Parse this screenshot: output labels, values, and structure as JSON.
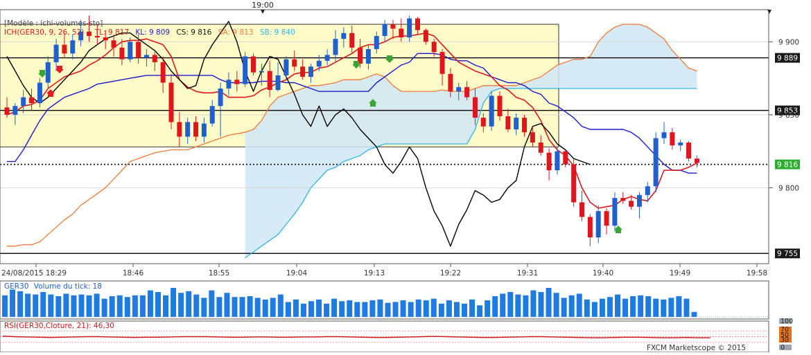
{
  "header": {
    "top_time": "19:00",
    "model": "[Modèle : ichi-volumes-sto]",
    "ich_label": "ICH(GER30, 9, 26, 52) -",
    "tl": "TL: 9 817",
    "kl": "KL: 9 809",
    "cs": "CS: 9 816",
    "sa": "SA: 9 813",
    "sb": "SB: 9 840"
  },
  "footer": {
    "brand": "FXCM Marketscope © 2015"
  },
  "colors": {
    "up": "#1f5fd0",
    "down": "#e0161c",
    "tenkan": "#e0161c",
    "kijun": "#1a1ad0",
    "chikou": "#000000",
    "senkou_a": "#f07b3a",
    "senkou_b": "#33b3e8",
    "cloud": "#cfe6f6",
    "zone": "#fffbc8",
    "volume": "#1f7be0",
    "rsi": "#cc1414"
  },
  "chart_data": [
    {
      "type": "candlestick",
      "title": "ICH(GER30, 9, 26, 52)",
      "x_tick_labels": [
        "24/08/2015 18:29",
        "18:46",
        "18:55",
        "19:04",
        "19:13",
        "19:22",
        "19:31",
        "19:40",
        "19:49",
        "19:58"
      ],
      "y_tick_labels": [
        "9 900",
        "9 850",
        "9 800"
      ],
      "ylim": [
        9748,
        9922
      ],
      "price_markers": [
        {
          "label": "9 889",
          "value": 9889,
          "style": "solid"
        },
        {
          "label": "9 853",
          "value": 9853,
          "style": "solid"
        },
        {
          "label": "9 816",
          "value": 9816,
          "style": "dashed",
          "color": "#2eae2e"
        },
        {
          "label": "9 755",
          "value": 9755,
          "style": "solid"
        }
      ],
      "zone": {
        "top": 9912,
        "bottom": 9828
      },
      "candles": [
        [
          9855,
          9862,
          9848,
          9850
        ],
        [
          9850,
          9858,
          9843,
          9856
        ],
        [
          9856,
          9867,
          9851,
          9862
        ],
        [
          9862,
          9868,
          9853,
          9858
        ],
        [
          9858,
          9875,
          9855,
          9872
        ],
        [
          9872,
          9890,
          9868,
          9886
        ],
        [
          9886,
          9902,
          9880,
          9898
        ],
        [
          9898,
          9906,
          9889,
          9892
        ],
        [
          9892,
          9905,
          9888,
          9901
        ],
        [
          9901,
          9915,
          9897,
          9907
        ],
        [
          9907,
          9918,
          9900,
          9904
        ],
        [
          9904,
          9912,
          9898,
          9903
        ],
        [
          9903,
          9908,
          9895,
          9901
        ],
        [
          9901,
          9905,
          9890,
          9896
        ],
        [
          9896,
          9902,
          9884,
          9888
        ],
        [
          9888,
          9903,
          9886,
          9900
        ],
        [
          9900,
          9905,
          9885,
          9889
        ],
        [
          9889,
          9895,
          9883,
          9891
        ],
        [
          9891,
          9893,
          9880,
          9886
        ],
        [
          9886,
          9890,
          9865,
          9872
        ],
        [
          9872,
          9878,
          9840,
          9845
        ],
        [
          9845,
          9852,
          9828,
          9835
        ],
        [
          9835,
          9848,
          9830,
          9845
        ],
        [
          9845,
          9849,
          9832,
          9835
        ],
        [
          9835,
          9848,
          9831,
          9844
        ],
        [
          9844,
          9860,
          9842,
          9856
        ],
        [
          9856,
          9872,
          9835,
          9868
        ],
        [
          9868,
          9879,
          9863,
          9874
        ],
        [
          9874,
          9880,
          9866,
          9871
        ],
        [
          9871,
          9893,
          9869,
          9890
        ],
        [
          9890,
          9892,
          9877,
          9879
        ],
        [
          9879,
          9885,
          9870,
          9880
        ],
        [
          9880,
          9887,
          9862,
          9867
        ],
        [
          9867,
          9886,
          9866,
          9877
        ],
        [
          9877,
          9890,
          9874,
          9888
        ],
        [
          9888,
          9894,
          9880,
          9883
        ],
        [
          9883,
          9888,
          9874,
          9876
        ],
        [
          9876,
          9885,
          9872,
          9883
        ],
        [
          9883,
          9891,
          9880,
          9887
        ],
        [
          9887,
          9895,
          9884,
          9891
        ],
        [
          9891,
          9908,
          9886,
          9902
        ],
        [
          9902,
          9910,
          9896,
          9906
        ],
        [
          9906,
          9911,
          9892,
          9896
        ],
        [
          9896,
          9902,
          9882,
          9885
        ],
        [
          9885,
          9898,
          9881,
          9895
        ],
        [
          9895,
          9907,
          9892,
          9904
        ],
        [
          9904,
          9915,
          9900,
          9912
        ],
        [
          9912,
          9915,
          9902,
          9909
        ],
        [
          9909,
          9916,
          9900,
          9903
        ],
        [
          9903,
          9918,
          9900,
          9916
        ],
        [
          9916,
          9917,
          9905,
          9908
        ],
        [
          9908,
          9909,
          9898,
          9900
        ],
        [
          9900,
          9902,
          9890,
          9893
        ],
        [
          9893,
          9895,
          9870,
          9878
        ],
        [
          9878,
          9882,
          9862,
          9866
        ],
        [
          9866,
          9872,
          9860,
          9869
        ],
        [
          9869,
          9873,
          9860,
          9862
        ],
        [
          9862,
          9868,
          9843,
          9848
        ],
        [
          9848,
          9851,
          9838,
          9842
        ],
        [
          9842,
          9866,
          9839,
          9863
        ],
        [
          9863,
          9866,
          9846,
          9849
        ],
        [
          9849,
          9854,
          9838,
          9840
        ],
        [
          9840,
          9851,
          9836,
          9848
        ],
        [
          9848,
          9850,
          9835,
          9838
        ],
        [
          9838,
          9842,
          9828,
          9831
        ],
        [
          9831,
          9836,
          9822,
          9824
        ],
        [
          9824,
          9827,
          9805,
          9812
        ],
        [
          9812,
          9828,
          9809,
          9825
        ],
        [
          9825,
          9826,
          9814,
          9816
        ],
        [
          9816,
          9820,
          9787,
          9790
        ],
        [
          9790,
          9798,
          9777,
          9780
        ],
        [
          9780,
          9782,
          9760,
          9766
        ],
        [
          9766,
          9788,
          9762,
          9784
        ],
        [
          9784,
          9786,
          9768,
          9774
        ],
        [
          9774,
          9797,
          9770,
          9793
        ],
        [
          9793,
          9797,
          9789,
          9791
        ],
        [
          9791,
          9795,
          9785,
          9787
        ],
        [
          9787,
          9797,
          9779,
          9795
        ],
        [
          9795,
          9804,
          9790,
          9801
        ],
        [
          9801,
          9838,
          9797,
          9834
        ],
        [
          9834,
          9845,
          9830,
          9838
        ],
        [
          9838,
          9841,
          9826,
          9829
        ],
        [
          9829,
          9833,
          9825,
          9831
        ],
        [
          9831,
          9832,
          9818,
          9820
        ],
        [
          9820,
          9822,
          9814,
          9817
        ]
      ],
      "tenkan": [
        9850,
        9852,
        9856,
        9857,
        9860,
        9868,
        9872,
        9876,
        9878,
        9880,
        9884,
        9887,
        9891,
        9896,
        9900,
        9901,
        9901,
        9902,
        9900,
        9898,
        9890,
        9874,
        9869,
        9866,
        9865,
        9865,
        9866,
        9862,
        9862,
        9862,
        9863,
        9867,
        9869,
        9872,
        9874,
        9878,
        9879,
        9879,
        9882,
        9883,
        9886,
        9889,
        9892,
        9896,
        9898,
        9898,
        9900,
        9903,
        9904,
        9904,
        9905,
        9906,
        9904,
        9898,
        9892,
        9886,
        9883,
        9880,
        9878,
        9876,
        9870,
        9867,
        9862,
        9860,
        9855,
        9846,
        9833,
        9826,
        9822,
        9815,
        9800,
        9790,
        9786,
        9787,
        9788,
        9792,
        9794,
        9792,
        9791,
        9798,
        9812,
        9812,
        9812,
        9814,
        9817
      ],
      "kijun": [
        9818,
        9818,
        9826,
        9836,
        9846,
        9854,
        9858,
        9862,
        9864,
        9866,
        9868,
        9871,
        9872,
        9873,
        9874,
        9875,
        9876,
        9877,
        9877,
        9877,
        9877,
        9877,
        9877,
        9877,
        9877,
        9877,
        9874,
        9872,
        9872,
        9872,
        9872,
        9873,
        9873,
        9873,
        9872,
        9872,
        9870,
        9868,
        9866,
        9866,
        9866,
        9866,
        9866,
        9866,
        9866,
        9872,
        9876,
        9880,
        9884,
        9886,
        9892,
        9892,
        9892,
        9891,
        9888,
        9887,
        9887,
        9884,
        9882,
        9876,
        9874,
        9872,
        9872,
        9870,
        9866,
        9864,
        9858,
        9856,
        9852,
        9848,
        9842,
        9840,
        9840,
        9840,
        9840,
        9840,
        9838,
        9834,
        9828,
        9822,
        9816,
        9812,
        9812,
        9810,
        9810
      ],
      "senkou_a": [
        9760,
        9760,
        9761,
        9761,
        9763,
        9768,
        9773,
        9778,
        9782,
        9788,
        9792,
        9796,
        9800,
        9806,
        9812,
        9818,
        9820,
        9822,
        9824,
        9825,
        9826,
        9826,
        9826,
        9828,
        9830,
        9832,
        9834,
        9836,
        9837,
        9838,
        9840,
        9846,
        9856,
        9862,
        9864,
        9866,
        9868,
        9870,
        9870,
        9871,
        9872,
        9874,
        9874,
        9874,
        9876,
        9878,
        9876,
        9870,
        9866,
        9866,
        9866,
        9866,
        9866,
        9867,
        9866,
        9866,
        9866,
        9868,
        9870,
        9870,
        9870,
        9870,
        9870,
        9872,
        9874,
        9876,
        9880,
        9884,
        9886,
        9888,
        9888,
        9890,
        9900,
        9906,
        9910,
        9912,
        9912,
        9912,
        9910,
        9906,
        9902,
        9894,
        9888,
        9882,
        9880
      ],
      "senkou_b": [
        null,
        null,
        null,
        null,
        null,
        null,
        null,
        null,
        null,
        null,
        null,
        null,
        null,
        null,
        null,
        null,
        null,
        null,
        null,
        null,
        null,
        null,
        null,
        null,
        null,
        null,
        null,
        null,
        null,
        9752,
        9756,
        9760,
        9764,
        9768,
        9775,
        9782,
        9790,
        9800,
        9806,
        9812,
        9814,
        9818,
        9820,
        9822,
        9826,
        9828,
        9830,
        9830,
        9830,
        9830,
        9830,
        9830,
        9830,
        9830,
        9830,
        9830,
        9830,
        9840,
        9858,
        9866,
        9868,
        9868,
        9868,
        9868,
        9868,
        9868,
        9868,
        9868,
        9868,
        9868,
        9868,
        9868,
        9868,
        9868,
        9868,
        9868,
        9868,
        9868,
        9868,
        9868,
        9868,
        9868,
        9868,
        9868,
        9868
      ],
      "chikou": [
        9890,
        9880,
        9870,
        9862,
        9858,
        9862,
        9868,
        9874,
        9880,
        9886,
        9894,
        9898,
        9902,
        9904,
        9906,
        9906,
        9902,
        9898,
        9894,
        9888,
        9880,
        9874,
        9868,
        9870,
        9888,
        9898,
        9906,
        9914,
        9900,
        9880,
        9866,
        9880,
        9890,
        9888,
        9876,
        9864,
        9850,
        9842,
        9856,
        9842,
        9850,
        9854,
        9848,
        9840,
        9834,
        9828,
        9816,
        9810,
        9818,
        9828,
        9820,
        9800,
        9784,
        9774,
        9760,
        9775,
        9785,
        9798,
        9795,
        9790,
        9792,
        9800,
        9805,
        9828,
        9842,
        9844,
        9838,
        9830,
        9826,
        9820,
        9818,
        9816
      ]
    },
    {
      "type": "bar",
      "title": "GER30 - Volume du tick",
      "title_series": "GER30",
      "title_volume": "Volume du tick: 18",
      "values": [
        26,
        33,
        31,
        28,
        27,
        30,
        27,
        25,
        28,
        26,
        27,
        26,
        28,
        22,
        25,
        26,
        24,
        26,
        26,
        32,
        30,
        26,
        35,
        29,
        31,
        27,
        23,
        32,
        24,
        29,
        24,
        24,
        25,
        23,
        21,
        23,
        27,
        18,
        21,
        16,
        19,
        21,
        16,
        22,
        19,
        20,
        18,
        18,
        20,
        21,
        17,
        18,
        20,
        18,
        21,
        20,
        22,
        16,
        20,
        18,
        16,
        21,
        14,
        20,
        25,
        28,
        30,
        27,
        26,
        32,
        30,
        35,
        29,
        23,
        26,
        28,
        21,
        18,
        22,
        24,
        27,
        22,
        25,
        26,
        25,
        22,
        21,
        23,
        25,
        22,
        6
      ]
    },
    {
      "type": "line",
      "title": "RSI(GER30,Cloture, 21): 46,30",
      "y_tick_labels": [
        "100",
        "70",
        "50",
        "30",
        "0"
      ],
      "ylim": [
        0,
        100
      ],
      "values": [
        52,
        50,
        49,
        48,
        47,
        48,
        49,
        50,
        50,
        49,
        48,
        47,
        48,
        48,
        49,
        50,
        50,
        50,
        49,
        48,
        48,
        49,
        49,
        48,
        48,
        49,
        49,
        50,
        50,
        49,
        48,
        47,
        47,
        48,
        49,
        50,
        51,
        50,
        49,
        48,
        47,
        47,
        48,
        49,
        50,
        50,
        49,
        48,
        47,
        46,
        46,
        47,
        48,
        48,
        47,
        46,
        46,
        47,
        46,
        46
      ]
    }
  ]
}
